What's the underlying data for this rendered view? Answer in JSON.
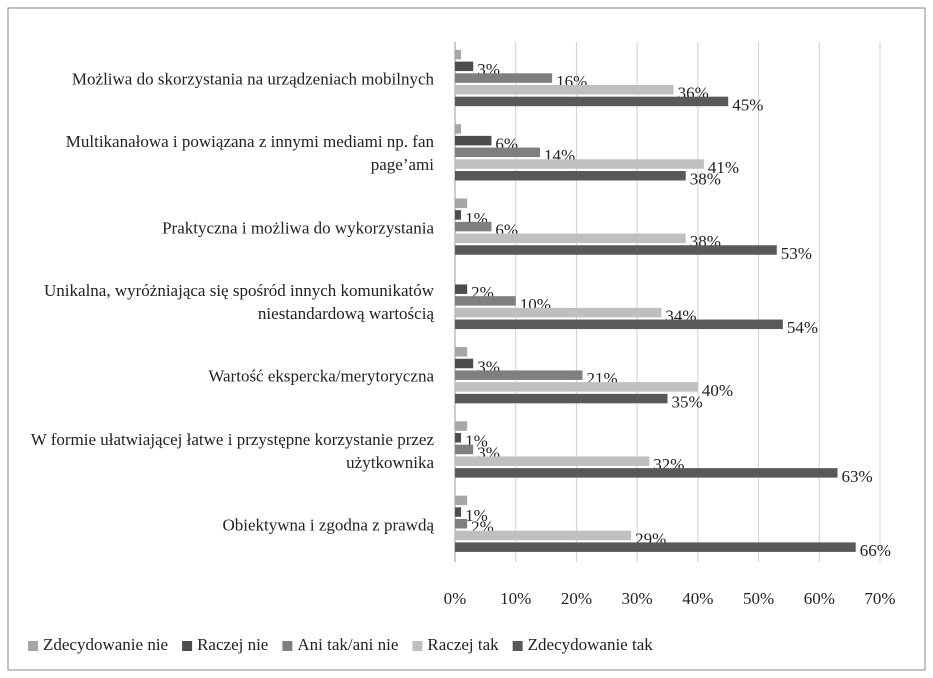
{
  "chart_data": {
    "type": "hbar",
    "categories": [
      "Możliwa do skorzystania na urządzeniach mobilnych",
      "Multikanałowa i powiązana z innymi mediami np. fan page’ami",
      "Praktyczna i możliwa do wykorzystania",
      "Unikalna, wyróżniająca się spośród innych komunikatów niestandardową wartością",
      "Wartość ekspercka/merytoryczna",
      "W formie ułatwiającej łatwe i przystępne korzystanie przez użytkownika",
      "Obiektywna i zgodna z prawdą"
    ],
    "series": [
      {
        "name": "Zdecydowanie nie",
        "color": "#a6a6a6",
        "values": [
          1,
          1,
          2,
          0,
          2,
          2,
          2
        ]
      },
      {
        "name": "Raczej nie",
        "color": "#4d4d4d",
        "values": [
          3,
          6,
          1,
          2,
          3,
          1,
          1
        ],
        "value_labels": [
          "3%",
          "6%",
          "1%",
          "2%",
          "3%",
          "1%",
          "1%"
        ]
      },
      {
        "name": "Ani tak/ani nie",
        "color": "#7f7f7f",
        "values": [
          16,
          14,
          6,
          10,
          21,
          3,
          2
        ],
        "value_labels": [
          "16%",
          "14%",
          "6%",
          "10%",
          "21%",
          "3%",
          "2%"
        ]
      },
      {
        "name": "Raczej tak",
        "color": "#bfbfbf",
        "values": [
          36,
          41,
          38,
          34,
          40,
          32,
          29
        ],
        "value_labels": [
          "36%",
          "41%",
          "38%",
          "34%",
          "40%",
          "32%",
          "29%"
        ]
      },
      {
        "name": "Zdecydowanie tak",
        "color": "#595959",
        "values": [
          45,
          38,
          53,
          54,
          35,
          63,
          66
        ],
        "value_labels": [
          "45%",
          "38%",
          "53%",
          "54%",
          "35%",
          "63%",
          "66%"
        ]
      }
    ],
    "xlim": [
      0,
      70
    ],
    "xticks": [
      {
        "value": 0,
        "label": "0%"
      },
      {
        "value": 10,
        "label": "10%"
      },
      {
        "value": 20,
        "label": "20%"
      },
      {
        "value": 30,
        "label": "30%"
      },
      {
        "value": 40,
        "label": "40%"
      },
      {
        "value": 50,
        "label": "50%"
      },
      {
        "value": 60,
        "label": "60%"
      },
      {
        "value": 70,
        "label": "70%"
      }
    ],
    "grid": true,
    "legend": "bottom"
  }
}
